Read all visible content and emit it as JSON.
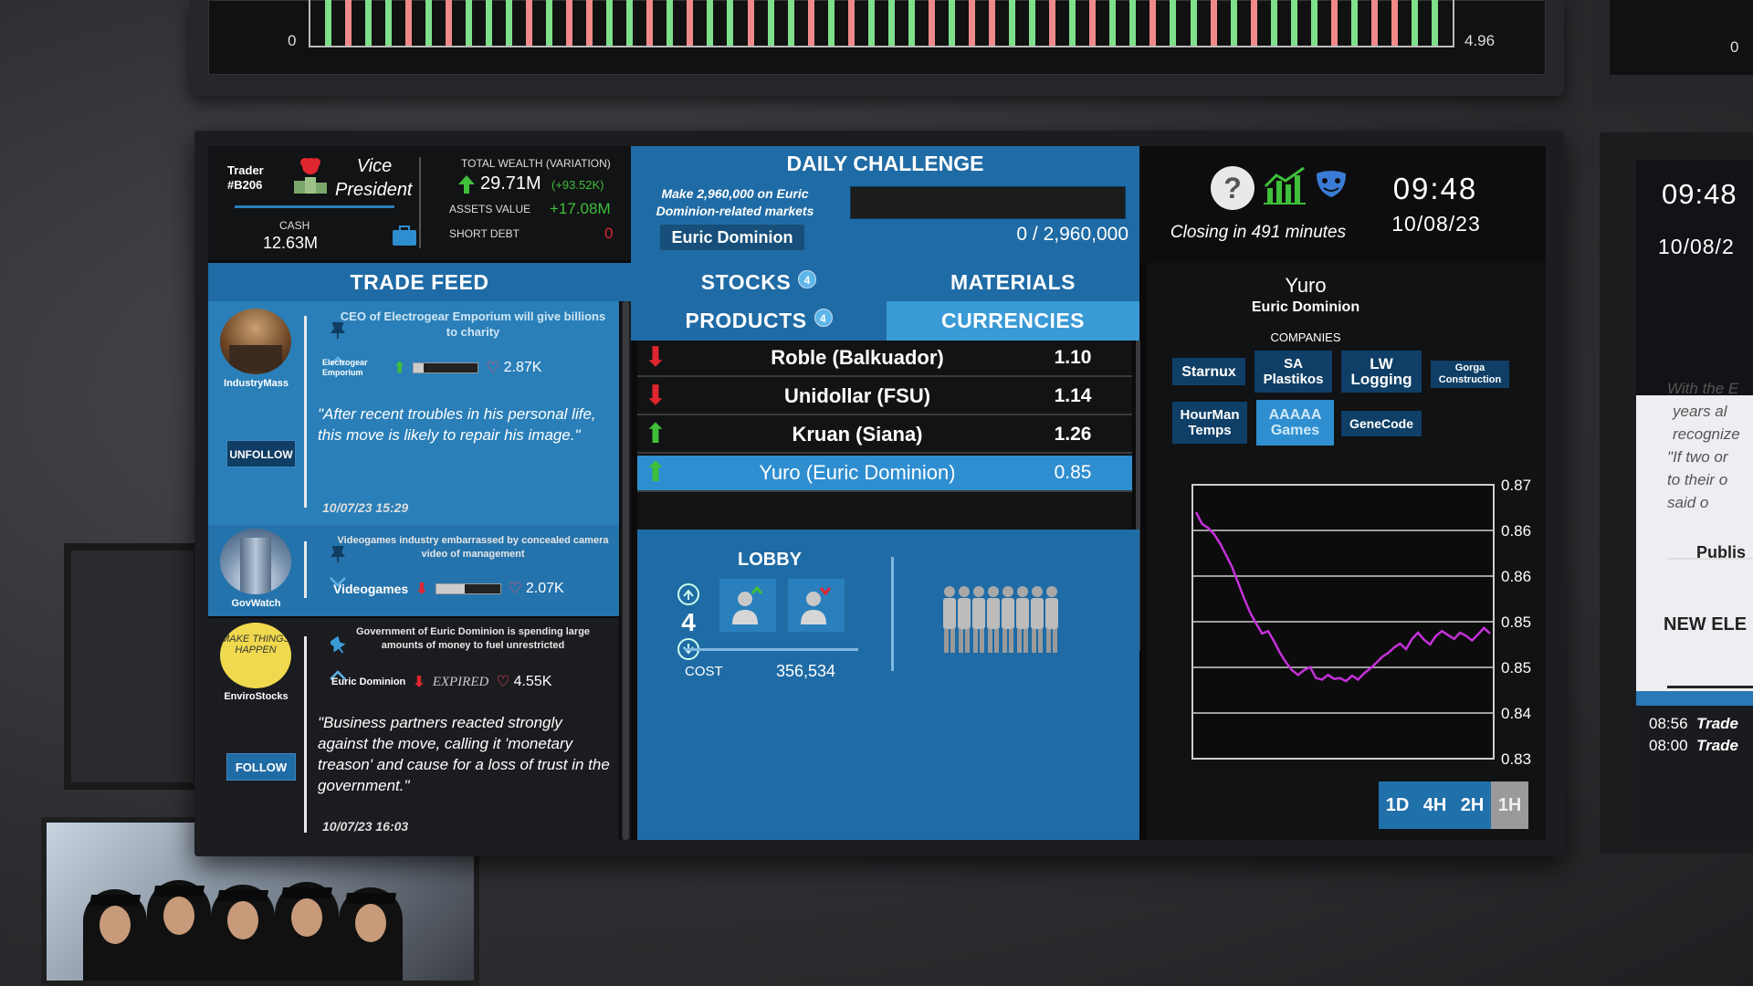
{
  "top_ticker": {
    "left_label": "0",
    "right_label": "4.96",
    "far_right_label": "0"
  },
  "header": {
    "trader_label": "Trader",
    "trader_id": "#B206",
    "rank_line1": "Vice",
    "rank_line2": "President",
    "cash_label": "CASH",
    "cash_value": "12.63M",
    "total_wealth_label": "TOTAL WEALTH (VARIATION)",
    "total_wealth_value": "29.71M",
    "total_wealth_variation": "(+93.52K)",
    "assets_label": "ASSETS VALUE",
    "assets_value": "+17.08M",
    "debt_label": "SHORT DEBT",
    "debt_value": "0"
  },
  "challenge": {
    "title": "DAILY CHALLENGE",
    "description_line1": "Make 2,960,000 on Euric",
    "description_line2": "Dominion-related markets",
    "tag": "Euric Dominion",
    "progress_text": "0 / 2,960,000",
    "progress_fraction": 0
  },
  "clock": {
    "closing": "Closing in 491 minutes",
    "time": "09:48",
    "date": "10/08/23"
  },
  "feed": {
    "title": "TRADE FEED",
    "posts": [
      {
        "author": "IndustryMass",
        "headline": "CEO of Electrogear Emporium will give billions to charity",
        "company": "Electrogear Emporium",
        "likes": "2.87K",
        "quote": "\"After recent troubles in his personal life, this move is likely to repair his image.\"",
        "timestamp": "10/07/23 15:29",
        "button": "UNFOLLOW",
        "bar_fraction": 0.15
      },
      {
        "author": "GovWatch",
        "headline": "Videogames industry embarrassed by concealed camera video of management",
        "company": "Videogames",
        "likes": "2.07K",
        "bar_fraction": 0.45
      },
      {
        "author": "EnviroStocks",
        "avatar_text": "MAKE THINGS HAPPEN",
        "headline": "Government of Euric Dominion is spending large amounts of money to fuel unrestricted",
        "company": "Euric Dominion",
        "status": "EXPIRED",
        "likes": "4.55K",
        "quote": "\"Business partners reacted strongly against the move, calling it 'monetary treason' and cause for a loss of trust in the government.\"",
        "timestamp": "10/07/23 16:03",
        "button": "FOLLOW"
      }
    ]
  },
  "market": {
    "tabs": [
      {
        "label": "STOCKS",
        "badge": "4"
      },
      {
        "label": "MATERIALS"
      },
      {
        "label": "PRODUCTS",
        "badge": "4"
      },
      {
        "label": "CURRENCIES"
      }
    ],
    "rows": [
      {
        "name": "Roble (Balkuador)",
        "value": "1.10",
        "trend": "down"
      },
      {
        "name": "Unidollar (FSU)",
        "value": "1.14",
        "trend": "down"
      },
      {
        "name": "Kruan (Siana)",
        "value": "1.26",
        "trend": "up"
      },
      {
        "name": "Yuro (Euric Dominion)",
        "value": "0.85",
        "trend": "up"
      }
    ]
  },
  "lobby": {
    "title": "LOBBY",
    "count": "4",
    "cost_label": "COST",
    "cost_value": "356,534",
    "staff_count": 8
  },
  "detail": {
    "currency": "Yuro",
    "country": "Euric Dominion",
    "companies_label": "COMPANIES",
    "companies": [
      "Starnux",
      "SA Plastikos",
      "LW Logging",
      "Gorga Construction",
      "HourMan Temps",
      "AAAAA Games",
      "GeneCode"
    ],
    "active_company": "AAAAA Games",
    "timeframes": [
      "1D",
      "4H",
      "2H",
      "1H"
    ],
    "active_timeframe": "1H"
  },
  "chart_data": {
    "type": "line",
    "ytick_labels": [
      "0.87",
      "0.86",
      "0.86",
      "0.85",
      "0.85",
      "0.84",
      "0.83"
    ],
    "ylim": [
      0.8325,
      0.8675
    ],
    "series": [
      {
        "color": "#c531d9",
        "values": [
          0.864,
          0.8625,
          0.862,
          0.8612,
          0.86,
          0.8585,
          0.857,
          0.855,
          0.853,
          0.8512,
          0.8498,
          0.8485,
          0.8488,
          0.8475,
          0.846,
          0.8448,
          0.8438,
          0.8432,
          0.8438,
          0.8442,
          0.8428,
          0.8426,
          0.8432,
          0.8427,
          0.8428,
          0.8424,
          0.8431,
          0.8426,
          0.8434,
          0.844,
          0.8447,
          0.8455,
          0.846,
          0.8467,
          0.8472,
          0.8465,
          0.8478,
          0.8486,
          0.8477,
          0.8471,
          0.8482,
          0.8488,
          0.8483,
          0.8478,
          0.8486,
          0.8482,
          0.8476,
          0.8484,
          0.8492,
          0.8485
        ]
      }
    ]
  },
  "side": {
    "time": "09:48",
    "date": "10/08/2",
    "quote_lines": [
      "With the E",
      "years al",
      "recognize",
      "\"If two or",
      "to their o",
      "said o"
    ],
    "publish": "Publis",
    "new": "NEW ELE",
    "log": [
      {
        "time": "08:56",
        "text": "Trade"
      },
      {
        "time": "08:00",
        "text": "Trade"
      }
    ]
  },
  "colors": {
    "accent": "#1f6ba5",
    "accent_light": "#2f8ed0",
    "up": "#3fbf3a",
    "down": "#e0262f",
    "line": "#c531d9"
  }
}
